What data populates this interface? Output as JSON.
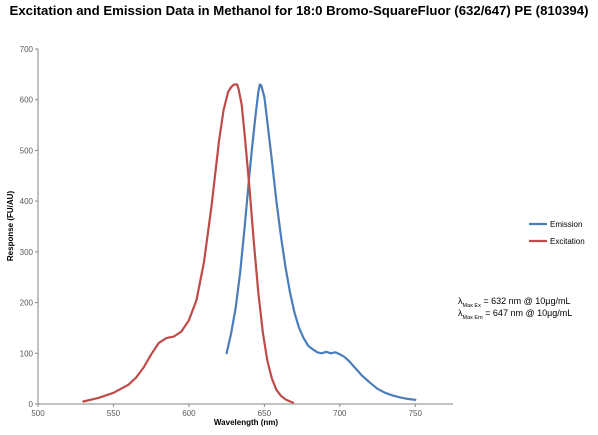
{
  "chart_data": {
    "type": "line",
    "title": "Excitation and Emission Data in Methanol for 18:0 Bromo-SquareFluor (632/647) PE (810394)",
    "xlabel": "Wavelength (nm)",
    "ylabel": "Response (FU/AU)",
    "xlim": [
      500,
      775
    ],
    "ylim": [
      0,
      700
    ],
    "x_ticks": [
      500,
      550,
      600,
      650,
      700,
      750
    ],
    "y_ticks": [
      0,
      100,
      200,
      300,
      400,
      500,
      600,
      700
    ],
    "grid": false,
    "legend_position": "right",
    "series": [
      {
        "name": "Emission",
        "color": "#4a7ebb",
        "x": [
          625,
          628,
          631,
          634,
          637,
          640,
          642,
          644,
          645,
          646,
          647,
          648,
          650,
          652,
          655,
          658,
          661,
          664,
          667,
          670,
          673,
          676,
          679,
          682,
          685,
          688,
          691,
          694,
          697,
          700,
          703,
          706,
          709,
          712,
          715,
          720,
          725,
          730,
          735,
          740,
          745,
          750
        ],
        "y": [
          100,
          140,
          190,
          260,
          350,
          450,
          510,
          565,
          590,
          615,
          630,
          628,
          605,
          555,
          480,
          400,
          330,
          270,
          220,
          180,
          150,
          130,
          115,
          108,
          102,
          100,
          103,
          100,
          102,
          98,
          93,
          85,
          75,
          65,
          55,
          42,
          30,
          22,
          17,
          13,
          10,
          8
        ]
      },
      {
        "name": "Excitation",
        "color": "#be4b48",
        "x": [
          530,
          540,
          550,
          560,
          565,
          570,
          575,
          580,
          585,
          590,
          595,
          600,
          605,
          610,
          615,
          620,
          623,
          626,
          628,
          630,
          632,
          633,
          635,
          637,
          640,
          643,
          646,
          649,
          652,
          655,
          658,
          661,
          664,
          667,
          669
        ],
        "y": [
          5,
          12,
          22,
          38,
          52,
          72,
          98,
          120,
          130,
          133,
          143,
          165,
          205,
          280,
          390,
          520,
          580,
          615,
          625,
          630,
          630,
          620,
          590,
          530,
          430,
          320,
          220,
          140,
          85,
          50,
          28,
          16,
          9,
          5,
          3
        ]
      }
    ],
    "annotations": [
      {
        "lambda": "λ",
        "sub": "Max Ex",
        "text": " = 632 nm @ 10µg/mL"
      },
      {
        "lambda": "λ",
        "sub": "Max Em",
        "text": " = 647 nm @ 10µg/mL"
      }
    ]
  }
}
